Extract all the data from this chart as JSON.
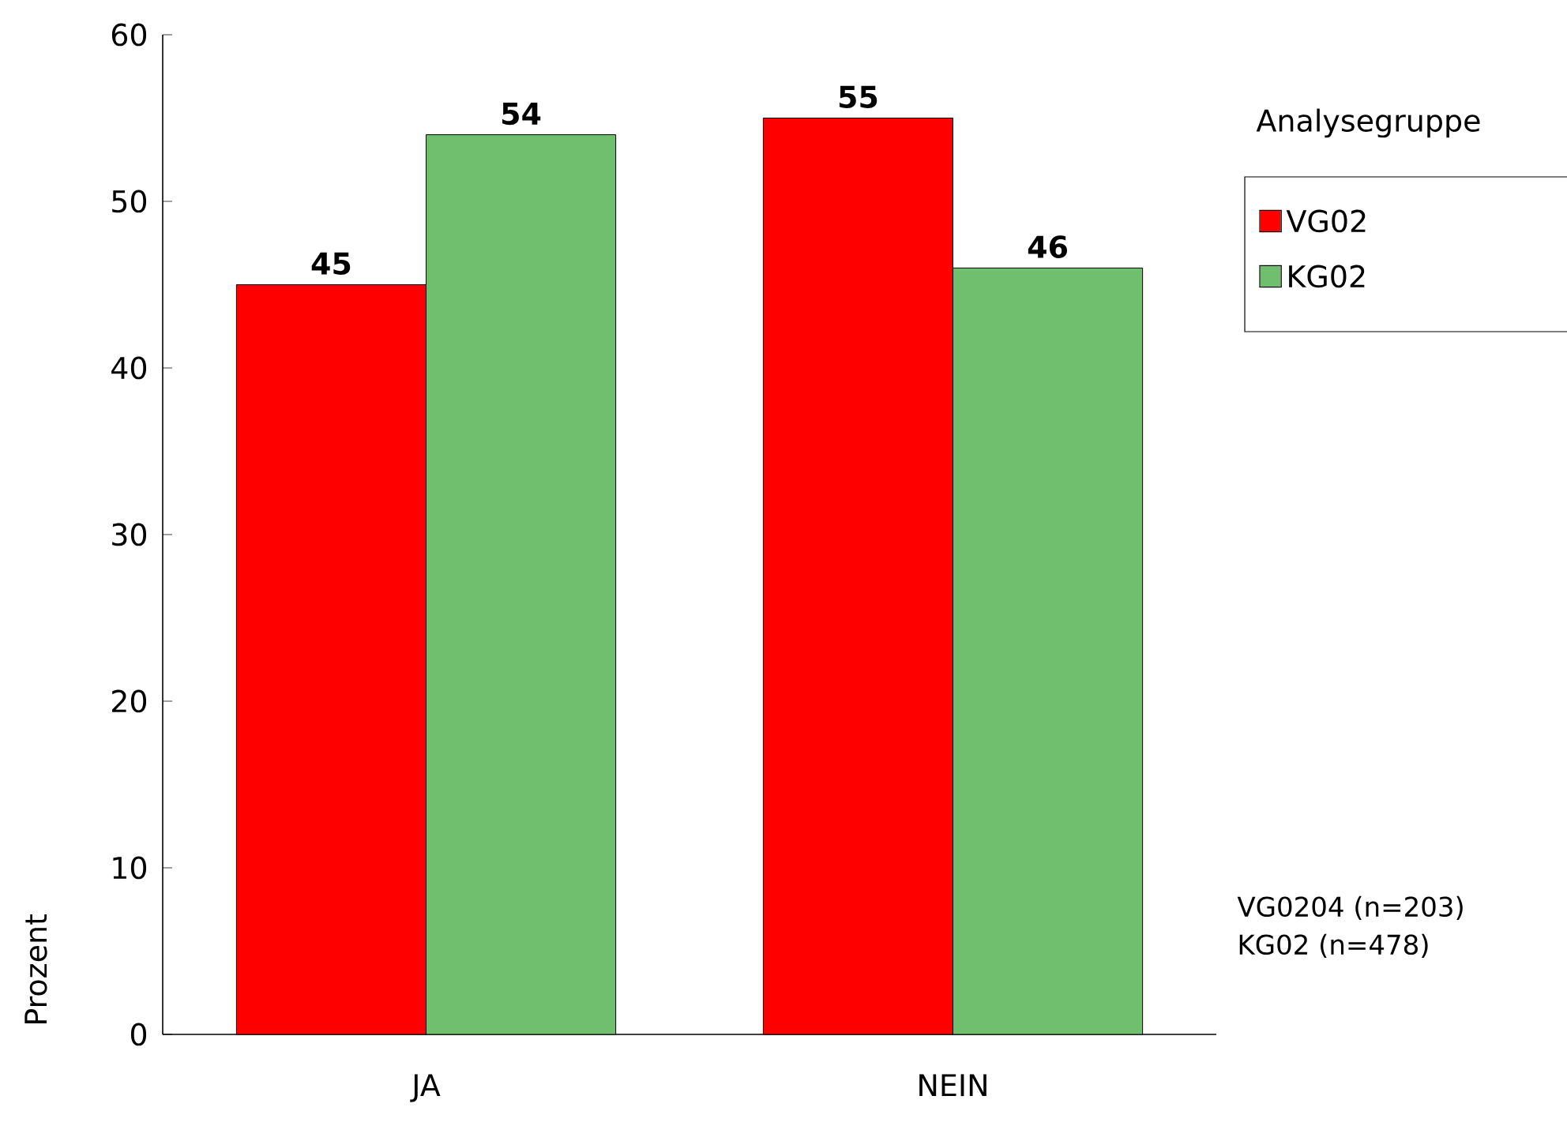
{
  "chart_data": {
    "type": "bar",
    "ylabel": "Prozent",
    "legend_title": "Analysegruppe",
    "categories": [
      "JA",
      "NEIN"
    ],
    "series": [
      {
        "name": "VG02",
        "color": "#ff0000",
        "values": [
          45,
          55
        ]
      },
      {
        "name": "KG02",
        "color": "#6fbf6f",
        "values": [
          54,
          46
        ]
      }
    ],
    "ylim": [
      0,
      60
    ],
    "yticks": [
      0,
      10,
      20,
      30,
      40,
      50,
      60
    ],
    "data_labels": true,
    "legend": "right",
    "grid": false,
    "annotations": [
      "VG0204 (n=203)",
      "KG02 (n=478)"
    ]
  }
}
